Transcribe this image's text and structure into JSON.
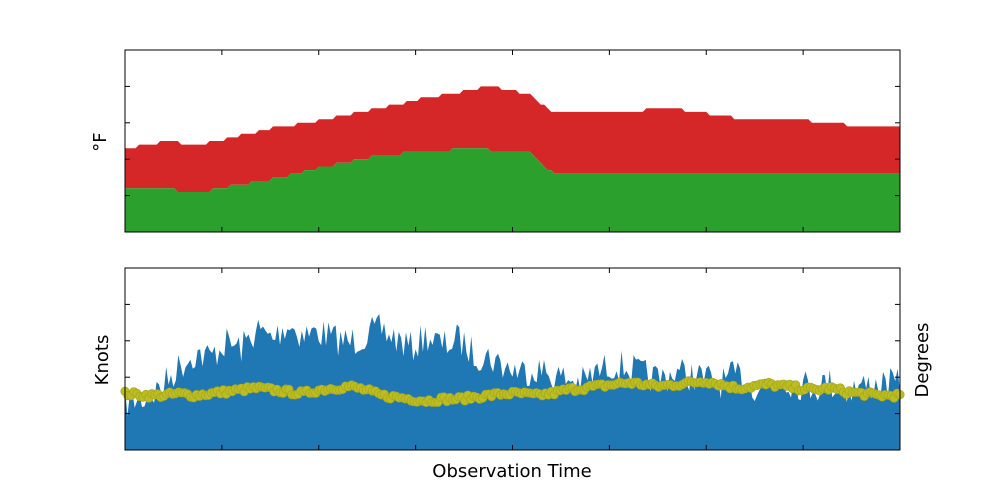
{
  "chart_data": [
    {
      "type": "area",
      "title": "",
      "xlabel": "",
      "ylabel": "°F",
      "xlim": [
        0,
        100
      ],
      "ylim": [
        0,
        100
      ],
      "grid": false,
      "series": [
        {
          "color": "#d62728",
          "x": [
            0,
            5.5,
            9,
            12,
            16,
            20,
            24,
            28,
            33,
            38,
            42,
            47,
            52,
            55,
            58,
            62,
            67,
            72,
            80,
            86,
            95,
            100
          ],
          "upper": [
            46,
            50,
            48,
            50,
            54,
            58,
            60,
            64,
            68,
            73,
            76,
            80,
            76,
            66,
            65,
            66,
            67,
            67,
            62,
            62,
            58,
            58
          ],
          "lower": [
            24,
            24,
            21,
            24,
            27,
            30,
            34,
            38,
            42,
            44,
            45,
            45,
            44,
            33,
            31,
            31,
            31,
            31,
            31,
            31,
            31,
            31
          ]
        },
        {
          "color": "#2ca02c",
          "x": [
            0,
            5.5,
            9,
            12,
            16,
            20,
            24,
            28,
            33,
            38,
            42,
            47,
            52,
            55,
            58,
            62,
            67,
            72,
            80,
            86,
            95,
            100
          ],
          "upper": [
            24,
            24,
            21,
            24,
            27,
            30,
            34,
            38,
            42,
            44,
            45,
            45,
            44,
            33,
            31,
            31,
            31,
            31,
            31,
            31,
            31,
            31
          ],
          "lower": [
            0,
            0,
            0,
            0,
            0,
            0,
            0,
            0,
            0,
            0,
            0,
            0,
            0,
            0,
            0,
            0,
            0,
            0,
            0,
            0,
            0,
            0
          ]
        }
      ]
    },
    {
      "type": "area",
      "title": "",
      "xlabel": "Observation Time",
      "ylabel": "Knots",
      "ylabel_right": "Degrees",
      "xlim": [
        0,
        100
      ],
      "ylim": [
        0,
        100
      ],
      "grid": false,
      "series": [
        {
          "color": "#1f77b4",
          "kind": "area",
          "x": [
            0,
            3,
            5,
            7,
            9,
            11,
            13,
            15,
            17,
            19,
            21,
            23,
            25,
            27,
            29,
            31,
            33,
            35,
            37,
            39,
            41,
            43,
            45,
            47,
            49,
            51,
            53,
            55,
            57,
            59,
            61,
            63,
            65,
            67,
            69,
            71,
            73,
            75,
            77,
            79,
            81,
            83,
            85,
            87,
            89,
            91,
            93,
            95,
            97,
            100
          ],
          "values": [
            35,
            38,
            45,
            55,
            62,
            60,
            68,
            65,
            75,
            70,
            78,
            72,
            74,
            70,
            68,
            72,
            75,
            70,
            65,
            72,
            66,
            70,
            62,
            60,
            55,
            52,
            54,
            50,
            48,
            46,
            52,
            56,
            54,
            50,
            48,
            52,
            50,
            48,
            46,
            50,
            44,
            46,
            48,
            45,
            44,
            46,
            42,
            44,
            45,
            45
          ]
        },
        {
          "color": "#bcbd22",
          "kind": "markers",
          "x": [
            0,
            3,
            5,
            7,
            9,
            11,
            13,
            15,
            17,
            19,
            21,
            23,
            25,
            27,
            29,
            31,
            33,
            35,
            37,
            39,
            41,
            43,
            45,
            47,
            49,
            51,
            53,
            55,
            57,
            59,
            61,
            63,
            65,
            67,
            69,
            71,
            73,
            75,
            77,
            79,
            81,
            83,
            85,
            87,
            89,
            91,
            93,
            95,
            97,
            100
          ],
          "values": [
            31,
            30,
            30,
            31,
            30,
            31,
            32,
            33,
            34,
            33,
            32,
            31,
            33,
            34,
            35,
            33,
            30,
            29,
            28,
            27,
            28,
            28,
            29,
            30,
            31,
            31,
            30,
            31,
            33,
            34,
            35,
            36,
            37,
            36,
            35,
            36,
            37,
            38,
            36,
            34,
            35,
            36,
            35,
            34,
            33,
            34,
            32,
            31,
            30,
            30
          ]
        }
      ]
    }
  ]
}
